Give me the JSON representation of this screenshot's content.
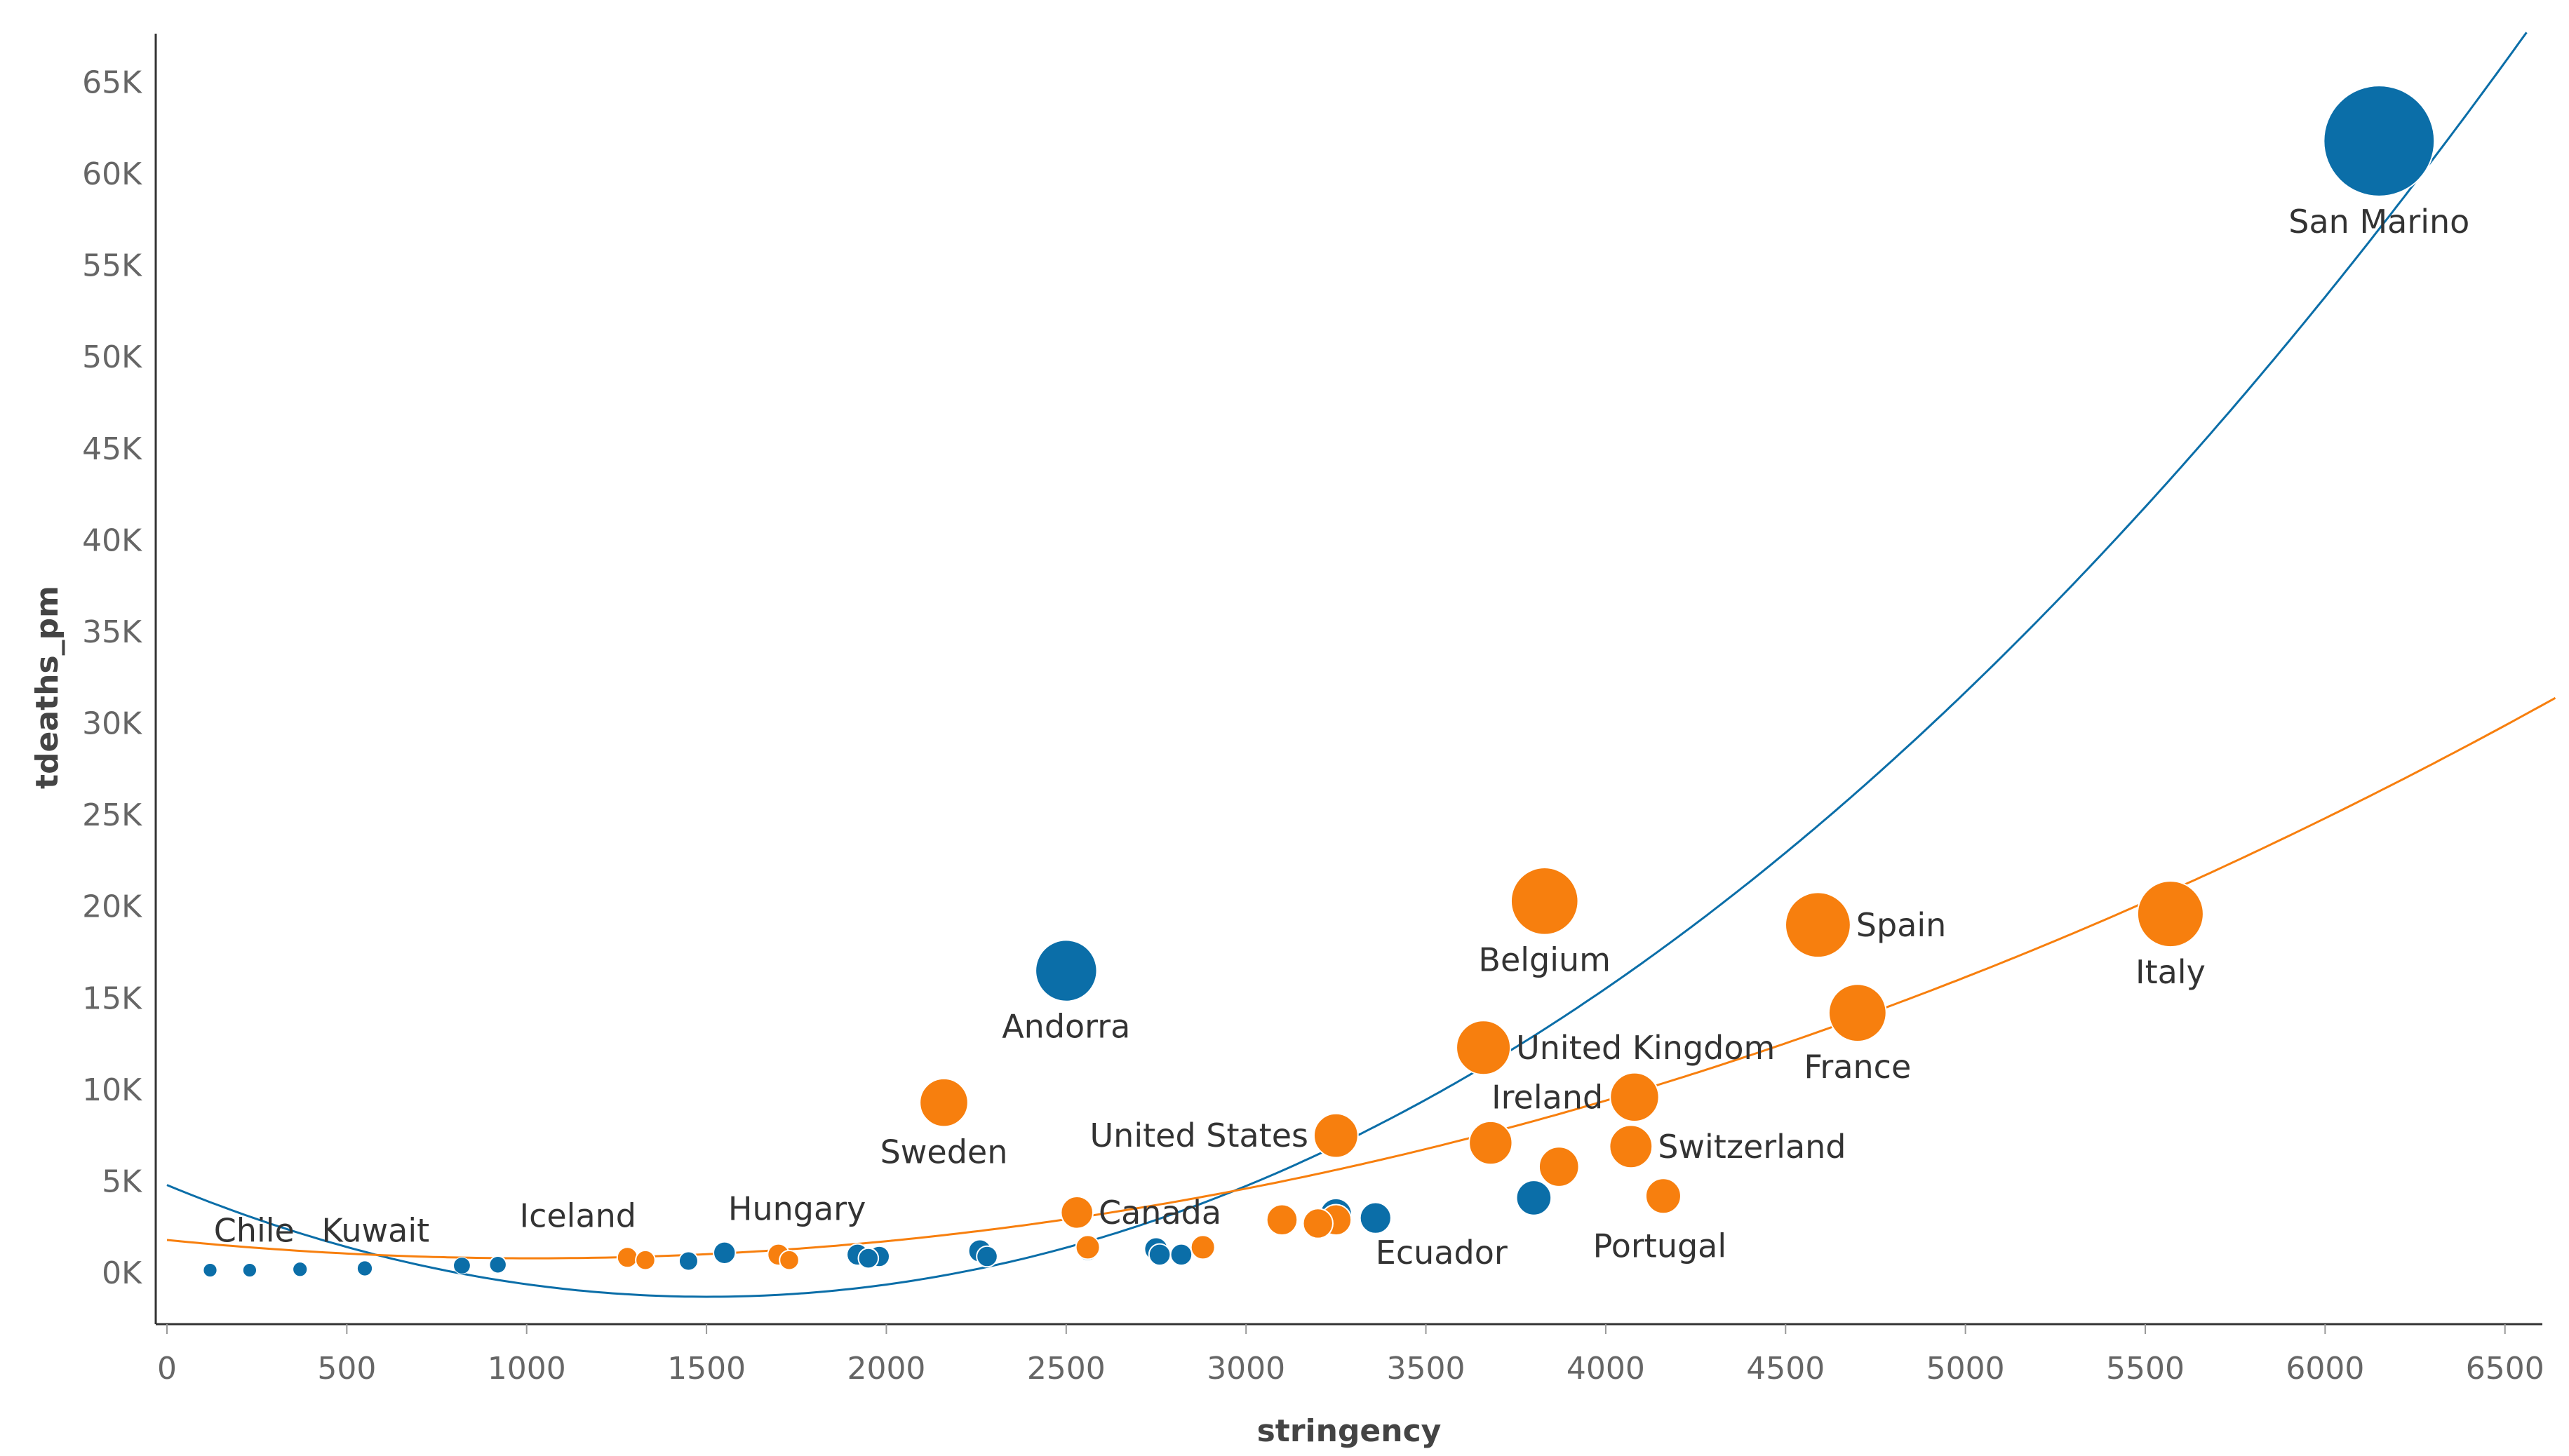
{
  "chart_data": {
    "type": "scatter",
    "title": "",
    "xlabel": "stringency",
    "ylabel": "tdeaths_pm",
    "xlim": [
      0,
      6600
    ],
    "ylim": [
      -3000,
      68000
    ],
    "x_ticks": [
      {
        "value": 0,
        "label": "0"
      },
      {
        "value": 500,
        "label": "500"
      },
      {
        "value": 1000,
        "label": "1000"
      },
      {
        "value": 1500,
        "label": "1500"
      },
      {
        "value": 2000,
        "label": "2000"
      },
      {
        "value": 2500,
        "label": "2500"
      },
      {
        "value": 3000,
        "label": "3000"
      },
      {
        "value": 3500,
        "label": "3500"
      },
      {
        "value": 4000,
        "label": "4000"
      },
      {
        "value": 4500,
        "label": "4500"
      },
      {
        "value": 5000,
        "label": "5000"
      },
      {
        "value": 5500,
        "label": "5500"
      },
      {
        "value": 6000,
        "label": "6000"
      },
      {
        "value": 6500,
        "label": "6500"
      }
    ],
    "y_ticks": [
      {
        "value": 0,
        "label": "0K"
      },
      {
        "value": 5000,
        "label": "5K"
      },
      {
        "value": 10000,
        "label": "10K"
      },
      {
        "value": 15000,
        "label": "15K"
      },
      {
        "value": 20000,
        "label": "20K"
      },
      {
        "value": 25000,
        "label": "25K"
      },
      {
        "value": 30000,
        "label": "30K"
      },
      {
        "value": 35000,
        "label": "35K"
      },
      {
        "value": 40000,
        "label": "40K"
      },
      {
        "value": 45000,
        "label": "45K"
      },
      {
        "value": 50000,
        "label": "50K"
      },
      {
        "value": 55000,
        "label": "55K"
      },
      {
        "value": 60000,
        "label": "60K"
      },
      {
        "value": 65000,
        "label": "65K"
      }
    ],
    "grid": false,
    "legend": "none",
    "size_encoding": "tdeaths_pm",
    "series": [
      {
        "color": "#0b6ea8",
        "trend": {
          "type": "polynomial",
          "degree": 2,
          "points": [
            [
              0,
              4800
            ],
            [
              1510,
              -1300
            ],
            [
              3600,
              10500
            ],
            [
              6570,
              68000
            ]
          ]
        },
        "points": [
          {
            "x": 120,
            "y": 150
          },
          {
            "x": 230,
            "y": 150
          },
          {
            "x": 370,
            "y": 200
          },
          {
            "x": 550,
            "y": 250
          },
          {
            "x": 820,
            "y": 400
          },
          {
            "x": 920,
            "y": 450
          },
          {
            "x": 1450,
            "y": 650
          },
          {
            "x": 1550,
            "y": 1100
          },
          {
            "x": 1920,
            "y": 1000
          },
          {
            "x": 1950,
            "y": 800
          },
          {
            "x": 1980,
            "y": 900
          },
          {
            "x": 2260,
            "y": 1200
          },
          {
            "x": 2280,
            "y": 900
          },
          {
            "x": 2560,
            "y": 1300
          },
          {
            "x": 2750,
            "y": 1300
          },
          {
            "x": 2760,
            "y": 1000
          },
          {
            "x": 2820,
            "y": 1000
          },
          {
            "x": 3250,
            "y": 3200
          },
          {
            "x": 3360,
            "y": 3000
          },
          {
            "x": 3800,
            "y": 4100
          },
          {
            "x": 2500,
            "y": 16500,
            "label": "Andorra"
          },
          {
            "x": 6150,
            "y": 61800,
            "label": "San Marino"
          }
        ]
      },
      {
        "color": "#f77f0e",
        "trend": {
          "type": "polynomial",
          "degree": 2,
          "points": [
            [
              0,
              1800
            ],
            [
              1000,
              800
            ],
            [
              3000,
              4300
            ],
            [
              6650,
              31500
            ]
          ]
        },
        "points": [
          {
            "x": 1280,
            "y": 850
          },
          {
            "x": 1330,
            "y": 700
          },
          {
            "x": 1700,
            "y": 1000
          },
          {
            "x": 1730,
            "y": 700
          },
          {
            "x": 2560,
            "y": 1400
          },
          {
            "x": 2880,
            "y": 1400
          },
          {
            "x": 3100,
            "y": 2900
          },
          {
            "x": 3200,
            "y": 2700
          },
          {
            "x": 3250,
            "y": 2900
          },
          {
            "x": 3680,
            "y": 7100
          },
          {
            "x": 3870,
            "y": 5800
          },
          {
            "x": 4160,
            "y": 4200,
            "label": "Portugal"
          },
          {
            "x": 2160,
            "y": 9300,
            "label": "Sweden"
          },
          {
            "x": 2530,
            "y": 3300,
            "label": "Canada"
          },
          {
            "x": 3250,
            "y": 7500,
            "label": "United States"
          },
          {
            "x": 3660,
            "y": 12300,
            "label": "United Kingdom"
          },
          {
            "x": 3830,
            "y": 20300,
            "label": "Belgium"
          },
          {
            "x": 4080,
            "y": 9600,
            "label": "Ireland"
          },
          {
            "x": 4070,
            "y": 6900,
            "label": "Switzerland"
          },
          {
            "x": 4590,
            "y": 19000,
            "label": "Spain"
          },
          {
            "x": 4700,
            "y": 14200,
            "label": "France"
          },
          {
            "x": 5570,
            "y": 19600,
            "label": "Italy"
          }
        ]
      }
    ],
    "annotations": [
      {
        "text": "Chile",
        "x": 130,
        "y": 1700
      },
      {
        "text": "Kuwait",
        "x": 430,
        "y": 1700
      },
      {
        "text": "Iceland",
        "x": 980,
        "y": 2500
      },
      {
        "text": "Hungary",
        "x": 1560,
        "y": 2900
      },
      {
        "text": "Ecuador",
        "x": 3360,
        "y": 500
      }
    ]
  }
}
